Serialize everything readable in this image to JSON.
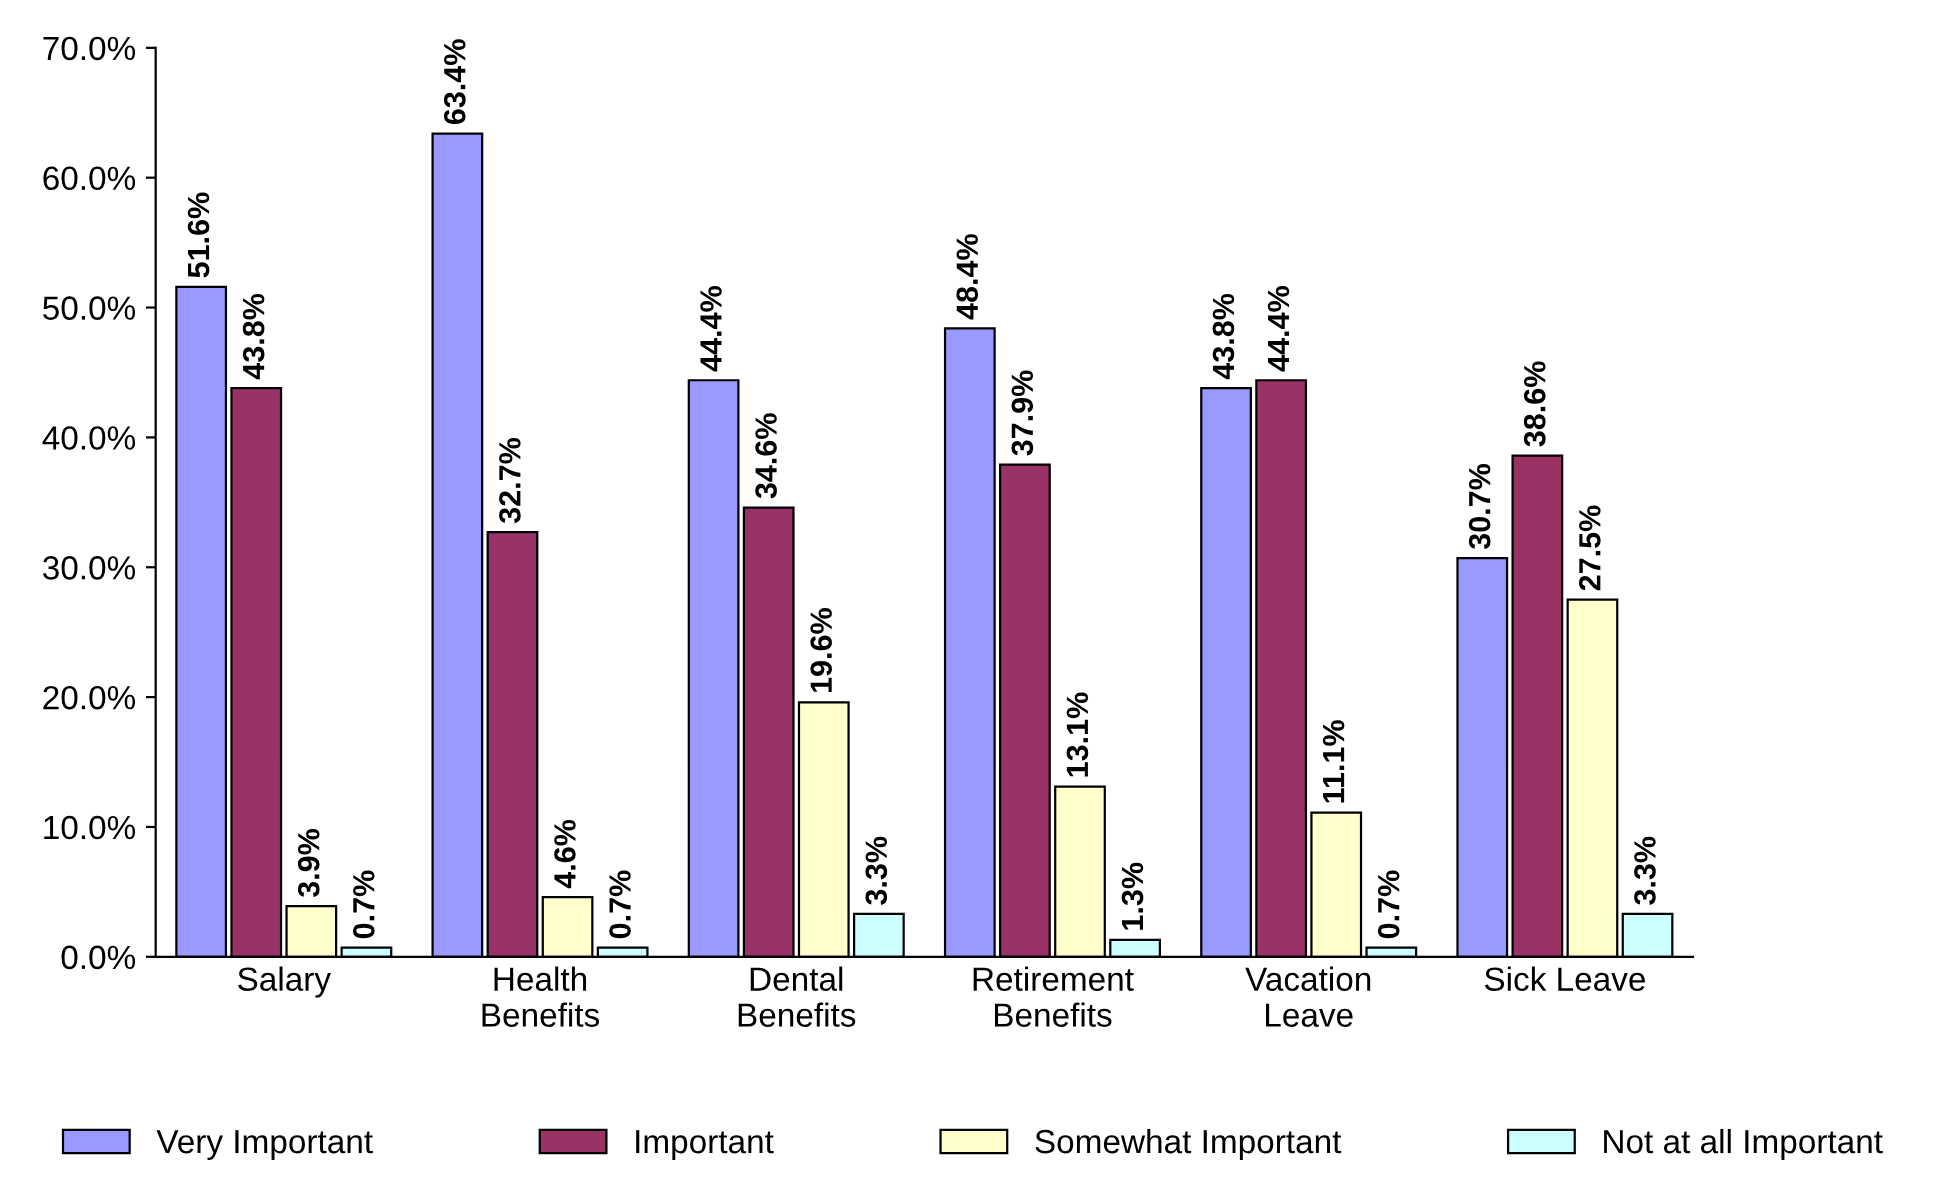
{
  "chart_data": {
    "type": "bar",
    "categories": [
      "Salary",
      "Health\nBenefits",
      "Dental\nBenefits",
      "Retirement\nBenefits",
      "Vacation\nLeave",
      "Sick Leave"
    ],
    "series": [
      {
        "name": "Very Important",
        "color": "#9999ff",
        "values": [
          51.6,
          63.4,
          44.4,
          48.4,
          43.8,
          30.7
        ],
        "value_labels": [
          "51.6%",
          "63.4%",
          "44.4%",
          "48.4%",
          "43.8%",
          "30.7%"
        ]
      },
      {
        "name": "Important",
        "color": "#993366",
        "values": [
          43.8,
          32.7,
          34.6,
          37.9,
          44.4,
          38.6
        ],
        "value_labels": [
          "43.8%",
          "32.7%",
          "34.6%",
          "37.9%",
          "44.4%",
          "38.6%"
        ]
      },
      {
        "name": "Somewhat Important",
        "color": "#ffffcc",
        "values": [
          3.9,
          4.6,
          19.6,
          13.1,
          11.1,
          27.5
        ],
        "value_labels": [
          "3.9%",
          "4.6%",
          "19.6%",
          "13.1%",
          "11.1%",
          "27.5%"
        ]
      },
      {
        "name": "Not at all Important",
        "color": "#ccffff",
        "values": [
          0.7,
          0.7,
          3.3,
          1.3,
          0.7,
          3.3
        ],
        "value_labels": [
          "0.7%",
          "0.7%",
          "3.3%",
          "1.3%",
          "0.7%",
          "3.3%"
        ]
      }
    ],
    "ylim": [
      0,
      70
    ],
    "yticks": [
      {
        "value": 0,
        "label": "0.0%"
      },
      {
        "value": 10,
        "label": "10.0%"
      },
      {
        "value": 20,
        "label": "20.0%"
      },
      {
        "value": 30,
        "label": "30.0%"
      },
      {
        "value": 40,
        "label": "40.0%"
      },
      {
        "value": 50,
        "label": "50.0%"
      },
      {
        "value": 60,
        "label": "60.0%"
      },
      {
        "value": 70,
        "label": "70.0%"
      }
    ],
    "grid": false,
    "legend": "bottom"
  }
}
